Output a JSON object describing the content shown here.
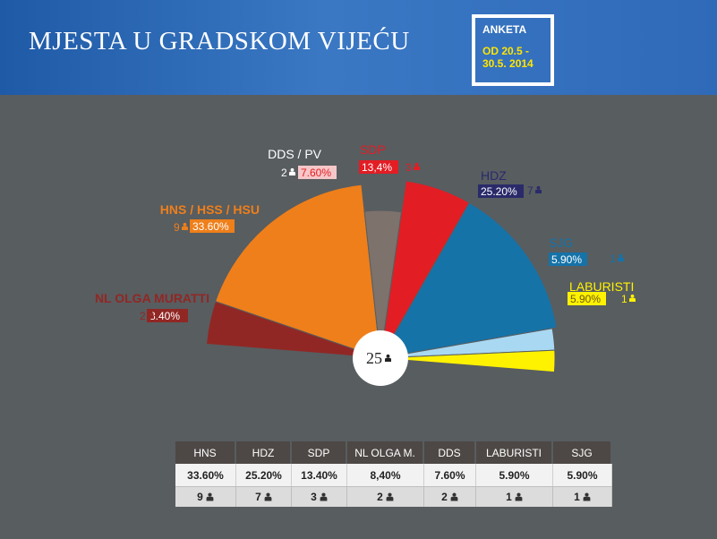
{
  "header": {
    "title": "MJESTA U GRADSKOM VIJEĆU",
    "poll_label": "ANKETA",
    "poll_dates": "OD 20.5 - 30.5. 2014"
  },
  "total_seats": "25",
  "colors": {
    "background": "#585d60",
    "header_blue": "#2f6ab8",
    "poll_dates": "#ffe500"
  },
  "icon": "person-icon",
  "chart_data": {
    "type": "pie",
    "subtype": "semicircle",
    "slices": [
      {
        "label": "NL OLGA MURATTI",
        "seats": 2,
        "pct": "8.40%",
        "color": "#912724"
      },
      {
        "label": "HNS / HSS / HSU",
        "seats": 9,
        "pct": "33.60%",
        "color": "#ef7f1a"
      },
      {
        "label": "DDS / PV",
        "seats": 2,
        "pct": "7.60%",
        "color": "#7d726c"
      },
      {
        "label": "SDP",
        "seats": 3,
        "pct": "13,4%",
        "color": "#e31d24"
      },
      {
        "label": "HDZ",
        "seats": 7,
        "pct": "25.20%",
        "color": "#1673a8"
      },
      {
        "label": "SJG",
        "seats": 1,
        "pct": "5.90%",
        "color": "#a9d8f2"
      },
      {
        "label": "LABURISTI",
        "seats": 1,
        "pct": "5.90%",
        "color": "#fff200"
      }
    ]
  },
  "table": {
    "headers": [
      "HNS",
      "HDZ",
      "SDP",
      "NL OLGA M.",
      "DDS",
      "LABURISTI",
      "SJG"
    ],
    "percentages": [
      "33.60%",
      "25.20%",
      "13.40%",
      "8,40%",
      "7.60%",
      "5.90%",
      "5.90%"
    ],
    "seats": [
      "9",
      "7",
      "3",
      "2",
      "2",
      "1",
      "1"
    ]
  }
}
